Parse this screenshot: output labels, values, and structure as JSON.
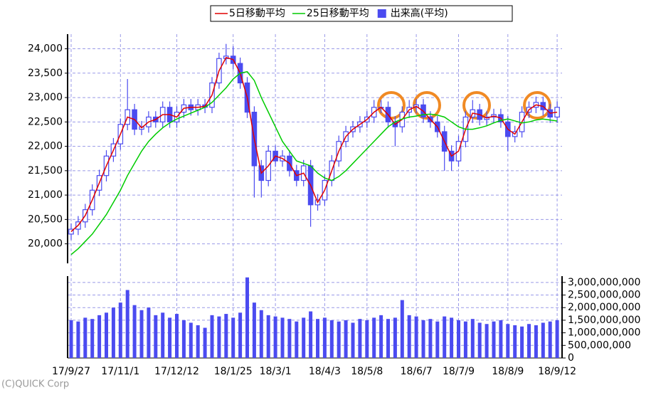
{
  "chart_data": [
    {
      "type": "candlestick",
      "categories": [
        "17/9/27",
        null,
        null,
        null,
        null,
        null,
        null,
        "17/11/1",
        null,
        null,
        null,
        null,
        null,
        null,
        null,
        "17/12/12",
        null,
        null,
        null,
        null,
        null,
        null,
        null,
        "18/1/25",
        null,
        null,
        null,
        null,
        null,
        "18/3/1",
        null,
        null,
        null,
        null,
        null,
        null,
        "18/4/3",
        null,
        null,
        null,
        null,
        null,
        "18/5/8",
        null,
        null,
        null,
        null,
        null,
        null,
        "18/6/7",
        null,
        null,
        null,
        null,
        null,
        "18/7/9",
        null,
        null,
        null,
        null,
        null,
        null,
        "18/8/9",
        null,
        null,
        null,
        null,
        null,
        null,
        "18/9/12"
      ],
      "open": [
        20200,
        20300,
        20450,
        20700,
        21100,
        21400,
        21800,
        22050,
        22450,
        22750,
        22350,
        22400,
        22600,
        22500,
        22800,
        22500,
        22700,
        22850,
        22750,
        22850,
        22800,
        23300,
        23800,
        23850,
        23700,
        23300,
        22700,
        21600,
        21300,
        21900,
        21700,
        21800,
        21500,
        21300,
        21600,
        20800,
        20900,
        21300,
        21700,
        22100,
        22300,
        22400,
        22500,
        22600,
        22800,
        22800,
        22500,
        22400,
        22700,
        22800,
        22850,
        22600,
        22500,
        22300,
        21900,
        21700,
        22100,
        22600,
        22750,
        22550,
        22600,
        22650,
        22500,
        22200,
        22300,
        22700,
        22800,
        22900,
        22750,
        22600
      ],
      "high": [
        20420,
        20570,
        20820,
        21220,
        21520,
        21920,
        22170,
        22570,
        23380,
        22870,
        22520,
        22720,
        22720,
        22920,
        22920,
        22820,
        22970,
        22970,
        22970,
        22970,
        23420,
        23920,
        24100,
        24050,
        23820,
        23420,
        22820,
        21720,
        22020,
        22020,
        21920,
        21920,
        21620,
        21720,
        21720,
        21020,
        21420,
        21820,
        22220,
        22420,
        22520,
        22620,
        22720,
        22950,
        22950,
        22920,
        22620,
        22820,
        22950,
        22970,
        22970,
        22720,
        22620,
        22420,
        22020,
        22220,
        22720,
        22950,
        22870,
        22720,
        22770,
        22770,
        22620,
        22420,
        22820,
        22920,
        23020,
        23020,
        22870,
        22920
      ],
      "low": [
        20080,
        20180,
        20330,
        20580,
        20980,
        21280,
        21680,
        21930,
        22330,
        22230,
        22230,
        22280,
        22380,
        22380,
        22380,
        22380,
        22580,
        22630,
        22630,
        22680,
        22680,
        23180,
        23680,
        23580,
        23180,
        22580,
        20950,
        20950,
        21180,
        21580,
        21580,
        21380,
        21180,
        21180,
        20350,
        20680,
        20780,
        21180,
        21580,
        21980,
        22180,
        22280,
        22380,
        22480,
        22680,
        22380,
        22000,
        22280,
        22580,
        22680,
        22480,
        22380,
        22180,
        21500,
        21500,
        21580,
        21980,
        22480,
        22430,
        22430,
        22480,
        22380,
        21900,
        22080,
        22180,
        22580,
        22680,
        22630,
        22480,
        22480
      ],
      "close": [
        20300,
        20450,
        20700,
        21100,
        21400,
        21800,
        22050,
        22450,
        22750,
        22350,
        22400,
        22600,
        22500,
        22800,
        22500,
        22700,
        22850,
        22750,
        22850,
        22800,
        23300,
        23800,
        23850,
        23700,
        23300,
        22700,
        21600,
        21300,
        21900,
        21700,
        21800,
        21500,
        21300,
        21600,
        20800,
        20900,
        21300,
        21700,
        22100,
        22300,
        22400,
        22500,
        22600,
        22800,
        22800,
        22500,
        22400,
        22700,
        22800,
        22850,
        22600,
        22500,
        22300,
        21900,
        21700,
        22100,
        22600,
        22750,
        22550,
        22600,
        22650,
        22500,
        22200,
        22300,
        22700,
        22800,
        22900,
        22750,
        22600,
        22800
      ],
      "color": "#4b4bf0",
      "series": [
        {
          "name": "5日移動平均",
          "color": "#e00000",
          "values": [
            20250,
            20380,
            20580,
            20900,
            21250,
            21600,
            21920,
            22250,
            22600,
            22550,
            22380,
            22500,
            22550,
            22650,
            22650,
            22600,
            22780,
            22800,
            22800,
            22820,
            23050,
            23550,
            23820,
            23780,
            23500,
            23000,
            22150,
            21450,
            21600,
            21800,
            21750,
            21650,
            21400,
            21450,
            21200,
            20850,
            21100,
            21500,
            21900,
            22200,
            22350,
            22450,
            22550,
            22700,
            22800,
            22650,
            22450,
            22550,
            22750,
            22820,
            22720,
            22550,
            22400,
            22100,
            21800,
            21900,
            22350,
            22680,
            22650,
            22580,
            22620,
            22580,
            22350,
            22250,
            22500,
            22750,
            22850,
            22820,
            22680,
            22700
          ]
        },
        {
          "name": "25日移動平均",
          "color": "#00cc00",
          "values": [
            19780,
            19900,
            20050,
            20200,
            20400,
            20600,
            20850,
            21100,
            21400,
            21650,
            21900,
            22100,
            22250,
            22380,
            22480,
            22560,
            22620,
            22680,
            22740,
            22800,
            22900,
            23050,
            23200,
            23380,
            23500,
            23530,
            23350,
            23000,
            22700,
            22400,
            22100,
            21900,
            21700,
            21650,
            21600,
            21450,
            21350,
            21300,
            21380,
            21500,
            21650,
            21800,
            21950,
            22100,
            22250,
            22400,
            22500,
            22560,
            22600,
            22620,
            22650,
            22660,
            22640,
            22600,
            22500,
            22400,
            22350,
            22350,
            22380,
            22420,
            22480,
            22530,
            22560,
            22520,
            22480,
            22500,
            22540,
            22560,
            22540,
            22520
          ]
        }
      ],
      "ylim": [
        19600,
        24300
      ],
      "yticks": [
        {
          "value": 20000,
          "label": "20,000"
        },
        {
          "value": 20500,
          "label": "20,500"
        },
        {
          "value": 21000,
          "label": "21,000"
        },
        {
          "value": 21500,
          "label": "21,500"
        },
        {
          "value": 22000,
          "label": "22,000"
        },
        {
          "value": 22500,
          "label": "22,500"
        },
        {
          "value": 23000,
          "label": "23,000"
        },
        {
          "value": 23500,
          "label": "23,500"
        },
        {
          "value": 24000,
          "label": "24,000"
        }
      ],
      "grid": true
    },
    {
      "type": "bar",
      "series": [
        {
          "name": "出来高(平均)",
          "color": "#4b4bf0",
          "values": [
            1500000000,
            1450000000,
            1600000000,
            1550000000,
            1700000000,
            1800000000,
            2000000000,
            2200000000,
            2700000000,
            2100000000,
            1900000000,
            2000000000,
            1700000000,
            1800000000,
            1600000000,
            1750000000,
            1500000000,
            1400000000,
            1300000000,
            1200000000,
            1700000000,
            1650000000,
            1750000000,
            1600000000,
            1800000000,
            3200000000,
            2200000000,
            1900000000,
            1700000000,
            1650000000,
            1600000000,
            1550000000,
            1450000000,
            1600000000,
            1850000000,
            1550000000,
            1600000000,
            1500000000,
            1450000000,
            1500000000,
            1400000000,
            1550000000,
            1500000000,
            1600000000,
            1700000000,
            1550000000,
            1600000000,
            2300000000,
            1700000000,
            1650000000,
            1500000000,
            1550000000,
            1450000000,
            1650000000,
            1600000000,
            1500000000,
            1450000000,
            1550000000,
            1400000000,
            1350000000,
            1450000000,
            1500000000,
            1350000000,
            1300000000,
            1250000000,
            1350000000,
            1300000000,
            1400000000,
            1450000000,
            1500000000
          ]
        }
      ],
      "ylim": [
        0,
        3250000000
      ],
      "yticks": [
        0,
        {
          "value": 500000000,
          "label": "500,000,000"
        },
        {
          "value": 1000000000,
          "label": "1,000,000,000"
        },
        {
          "value": 1500000000,
          "label": "1,500,000,000"
        },
        {
          "value": 2000000000,
          "label": "2,000,000,000"
        },
        {
          "value": 2500000000,
          "label": "2,500,000,000"
        },
        {
          "value": 3000000000,
          "label": "3,000,000,000"
        }
      ],
      "grid": true
    }
  ],
  "footer": "(C)QUICK Corp"
}
